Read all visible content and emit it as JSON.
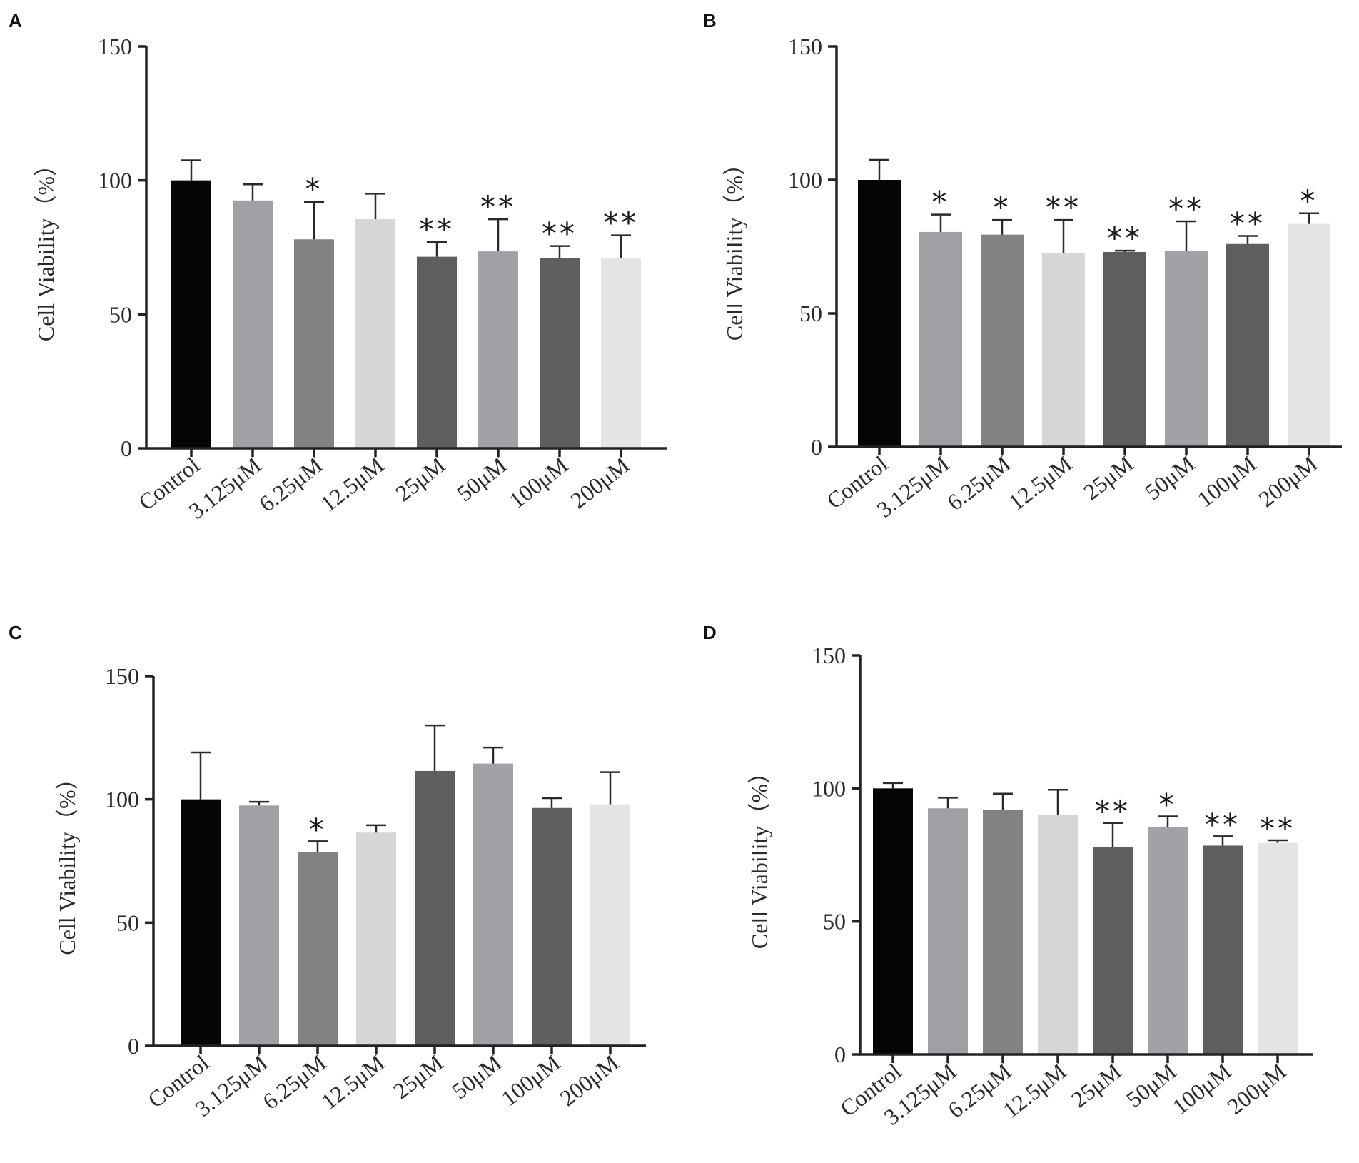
{
  "chart_data": [
    {
      "type": "bar",
      "panel": "A",
      "categories": [
        "Control",
        "3.125μM",
        "6.25μM",
        "12.5μM",
        "25μM",
        "50μM",
        "100μM",
        "200μM"
      ],
      "values": [
        100,
        92.5,
        78,
        85.5,
        71.5,
        73.5,
        71,
        71
      ],
      "errors": [
        7.5,
        6,
        14,
        9.5,
        5.5,
        12,
        4.5,
        8.5
      ],
      "significance": [
        "",
        "",
        "*",
        "",
        "**",
        "**",
        "**",
        "**"
      ],
      "bar_colors": [
        "#050505",
        "#a0a0a4",
        "#828282",
        "#d6d6d6",
        "#5e5e5e",
        "#a2a2a6",
        "#5e5e5e",
        "#e4e4e4"
      ],
      "ylabel": "Cell Viability（%）",
      "ylim": [
        0,
        150
      ],
      "yticks": [
        "0",
        "50",
        "100",
        "150"
      ]
    },
    {
      "type": "bar",
      "panel": "B",
      "categories": [
        "Control",
        "3.125μM",
        "6.25μM",
        "12.5μM",
        "25μM",
        "50μM",
        "100μM",
        "200μM"
      ],
      "values": [
        100,
        80.5,
        79.5,
        72.5,
        73,
        73.5,
        76,
        83.5
      ],
      "errors": [
        7.5,
        6.5,
        5.5,
        12.5,
        0.5,
        11,
        3,
        4
      ],
      "significance": [
        "",
        "*",
        "*",
        "**",
        "**",
        "**",
        "**",
        "*"
      ],
      "bar_colors": [
        "#050505",
        "#a0a0a4",
        "#828282",
        "#d6d6d6",
        "#5e5e5e",
        "#a2a2a6",
        "#5e5e5e",
        "#e4e4e4"
      ],
      "ylabel": "Cell Viability（%）",
      "ylim": [
        0,
        150
      ],
      "yticks": [
        "0",
        "50",
        "100",
        "150"
      ]
    },
    {
      "type": "bar",
      "panel": "C",
      "categories": [
        "Control",
        "3.125μM",
        "6.25μM",
        "12.5μM",
        "25μM",
        "50μM",
        "100μM",
        "200μM"
      ],
      "values": [
        100,
        97.5,
        78.5,
        86.5,
        111.5,
        114.5,
        96.5,
        98
      ],
      "errors": [
        19,
        1.5,
        4.5,
        3,
        18.5,
        6.5,
        4,
        13
      ],
      "significance": [
        "",
        "",
        "*",
        "",
        "",
        "",
        "",
        ""
      ],
      "bar_colors": [
        "#050505",
        "#a0a0a4",
        "#828282",
        "#d6d6d6",
        "#5e5e5e",
        "#a2a2a6",
        "#5e5e5e",
        "#e4e4e4"
      ],
      "ylabel": "Cell Viability（%）",
      "ylim": [
        0,
        150
      ],
      "yticks": [
        "0",
        "50",
        "100",
        "150"
      ]
    },
    {
      "type": "bar",
      "panel": "D",
      "categories": [
        "Control",
        "3.125μM",
        "6.25μM",
        "12.5μM",
        "25μM",
        "50μM",
        "100μM",
        "200μM"
      ],
      "values": [
        100,
        92.5,
        92,
        90,
        78,
        85.5,
        78.5,
        79.5
      ],
      "errors": [
        2,
        4,
        6,
        9.5,
        9,
        4,
        3.5,
        1
      ],
      "significance": [
        "",
        "",
        "",
        "",
        "**",
        "*",
        "**",
        "**"
      ],
      "bar_colors": [
        "#050505",
        "#a0a0a4",
        "#828282",
        "#d6d6d6",
        "#5e5e5e",
        "#a2a2a6",
        "#5e5e5e",
        "#e4e4e4"
      ],
      "ylabel": "Cell Viability（%）",
      "ylim": [
        0,
        150
      ],
      "yticks": [
        "0",
        "50",
        "100",
        "150"
      ]
    }
  ]
}
